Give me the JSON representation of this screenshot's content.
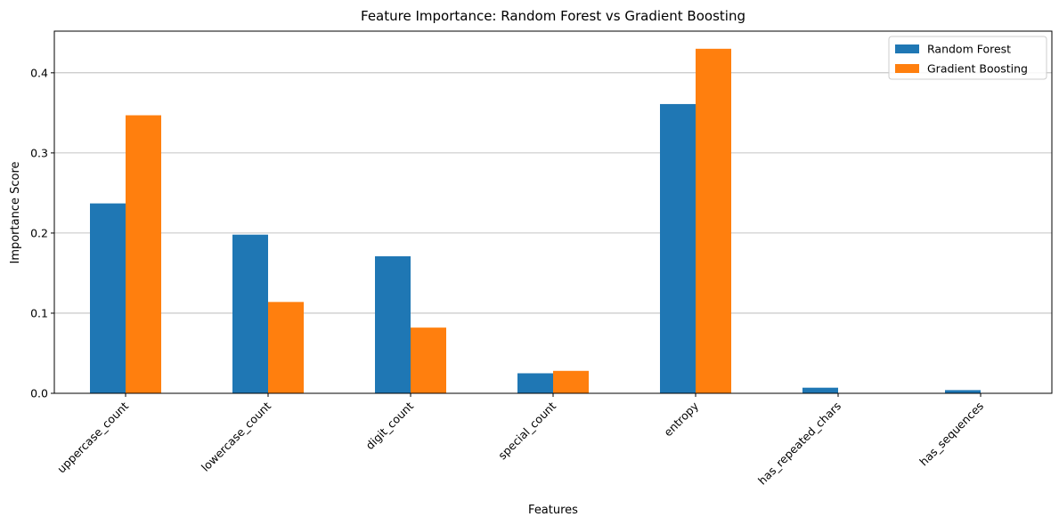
{
  "chart_data": {
    "type": "bar",
    "title": "Feature Importance: Random Forest vs Gradient Boosting",
    "xlabel": "Features",
    "ylabel": "Importance Score",
    "categories": [
      "uppercase_count",
      "lowercase_count",
      "digit_count",
      "special_count",
      "entropy",
      "has_repeated_chars",
      "has_sequences"
    ],
    "series": [
      {
        "name": "Random Forest",
        "color": "#1f77b4",
        "values": [
          0.237,
          0.198,
          0.171,
          0.025,
          0.361,
          0.007,
          0.004
        ]
      },
      {
        "name": "Gradient Boosting",
        "color": "#ff7f0e",
        "values": [
          0.347,
          0.114,
          0.082,
          0.028,
          0.43,
          0.0,
          0.0
        ]
      }
    ],
    "ylim": [
      0,
      0.452
    ],
    "yticks": [
      "0.0",
      "0.1",
      "0.2",
      "0.3",
      "0.4"
    ],
    "grid": "y",
    "legend": "top-right"
  }
}
